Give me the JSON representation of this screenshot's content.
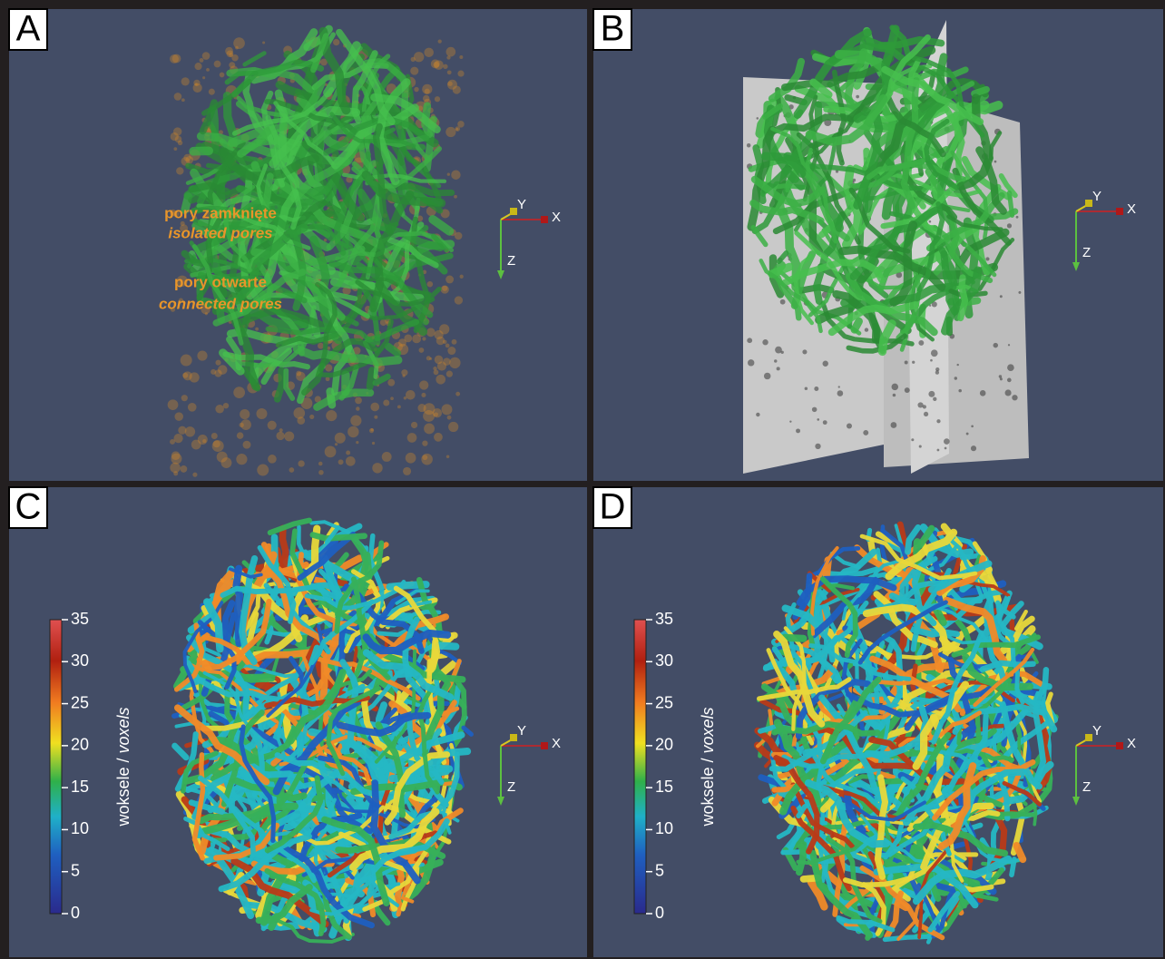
{
  "panels": [
    {
      "label": "A",
      "axes": {
        "y": "Y",
        "x": "X",
        "z": "Z"
      }
    },
    {
      "label": "B",
      "axes": {
        "y": "Y",
        "x": "X",
        "z": "Z"
      }
    },
    {
      "label": "C",
      "axes": {
        "y": "Y",
        "x": "X",
        "z": "Z"
      },
      "colorbar": {
        "range": [
          0,
          35
        ],
        "ticks": [
          0,
          5,
          10,
          15,
          20,
          25,
          30,
          35
        ],
        "label": "woksele /",
        "label_italic": "voxels"
      }
    },
    {
      "label": "D",
      "axes": {
        "y": "Y",
        "x": "X",
        "z": "Z"
      },
      "colorbar": {
        "range": [
          0,
          35
        ],
        "ticks": [
          0,
          5,
          10,
          15,
          20,
          25,
          30,
          35
        ],
        "label": "woksele /",
        "label_italic": "voxels"
      }
    }
  ],
  "legend": {
    "isolated_pl": "pory zamknięte",
    "isolated_en": "isolated pores",
    "connected_pl": "pory otwarte",
    "connected_en": "connected pores"
  }
}
